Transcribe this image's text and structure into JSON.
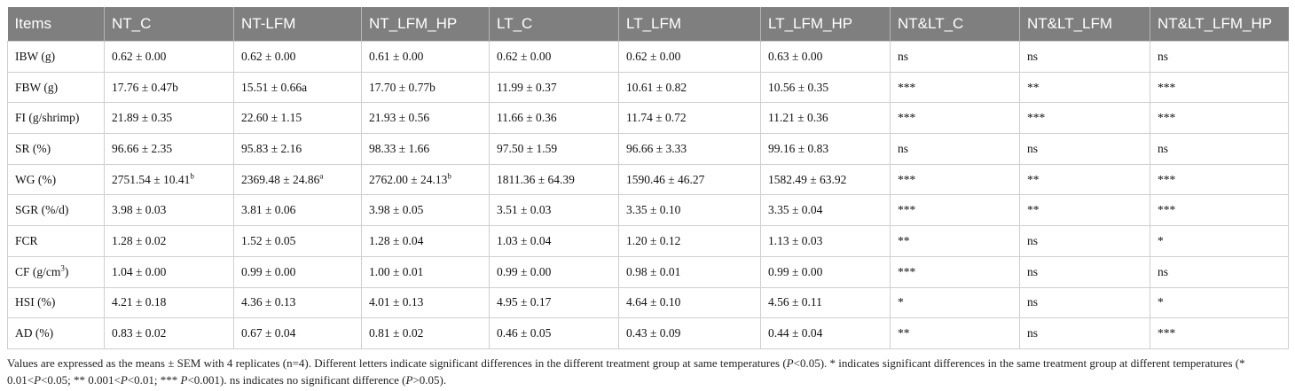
{
  "table": {
    "headers": [
      "Items",
      "NT_C",
      "NT-LFM",
      "NT_LFM_HP",
      "LT_C",
      "LT_LFM",
      "LT_LFM_HP",
      "NT&LT_C",
      "NT&LT_LFM",
      "NT&LT_LFM_HP"
    ],
    "rows": [
      [
        "IBW (g)",
        "0.62 ± 0.00",
        "0.62 ± 0.00",
        "0.61 ± 0.00",
        "0.62 ± 0.00",
        "0.62 ± 0.00",
        "0.63 ± 0.00",
        "ns",
        "ns",
        "ns"
      ],
      [
        "FBW (g)",
        "17.76 ± 0.47b",
        "15.51 ± 0.66a",
        "17.70 ± 0.77b",
        "11.99 ± 0.37",
        "10.61 ± 0.82",
        "10.56 ± 0.35",
        "***",
        "**",
        "***"
      ],
      [
        "FI (g/shrimp)",
        "21.89 ± 0.35",
        "22.60 ± 1.15",
        "21.93 ± 0.56",
        "11.66 ± 0.36",
        "11.74 ± 0.72",
        "11.21 ± 0.36",
        "***",
        "***",
        "***"
      ],
      [
        "SR (%)",
        "96.66 ± 2.35",
        "95.83 ± 2.16",
        "98.33 ± 1.66",
        "97.50 ± 1.59",
        "96.66 ± 3.33",
        "99.16 ± 0.83",
        "ns",
        "ns",
        "ns"
      ],
      [
        "WG (%)",
        "2751.54 ± 10.41",
        "2369.48 ± 24.86",
        "2762.00 ± 24.13",
        "1811.36 ± 64.39",
        "1590.46 ± 46.27",
        "1582.49 ± 63.92",
        "***",
        "**",
        "***"
      ],
      [
        "SGR (%/d)",
        "3.98 ± 0.03",
        "3.81 ± 0.06",
        "3.98 ± 0.05",
        "3.51 ± 0.03",
        "3.35 ± 0.10",
        "3.35 ± 0.04",
        "***",
        "**",
        "***"
      ],
      [
        "FCR",
        "1.28 ± 0.02",
        "1.52 ± 0.05",
        "1.28 ± 0.04",
        "1.03 ± 0.04",
        "1.20 ± 0.12",
        "1.13 ± 0.03",
        "**",
        "ns",
        "*"
      ],
      [
        "CF (g/cm",
        "1.04 ± 0.00",
        "0.99 ± 0.00",
        "1.00 ± 0.01",
        "0.99 ± 0.00",
        "0.98 ± 0.01",
        "0.99 ± 0.00",
        "***",
        "ns",
        "ns"
      ],
      [
        "HSI (%)",
        "4.21 ± 0.18",
        "4.36 ± 0.13",
        "4.01 ± 0.13",
        "4.95 ± 0.17",
        "4.64 ± 0.10",
        "4.56 ± 0.11",
        "*",
        "ns",
        "*"
      ],
      [
        "AD (%)",
        "0.83 ± 0.02",
        "0.67 ± 0.04",
        "0.81 ± 0.02",
        "0.46 ± 0.05",
        "0.43 ± 0.09",
        "0.44 ± 0.04",
        "**",
        "ns",
        "***"
      ]
    ],
    "wg_superscripts": [
      "b",
      "a",
      "b"
    ],
    "cf_superscript": "3",
    "cf_suffix": ")"
  },
  "footnote": {
    "part1": "Values are expressed as the means ± SEM with 4 replicates (n=4). Different letters indicate significant differences in the different treatment group at same temperatures (",
    "p1": "P",
    "part2": "<0.05). * indicates significant differences in the same treatment group at different temperatures (* 0.01<",
    "p2": "P",
    "part3": "<0.05; ** 0.001<",
    "p3": "P",
    "part4": "<0.01; *** ",
    "p4": "P",
    "part5": "<0.001). ns indicates no significant difference (",
    "p5": "P",
    "part6": ">0.05)."
  }
}
